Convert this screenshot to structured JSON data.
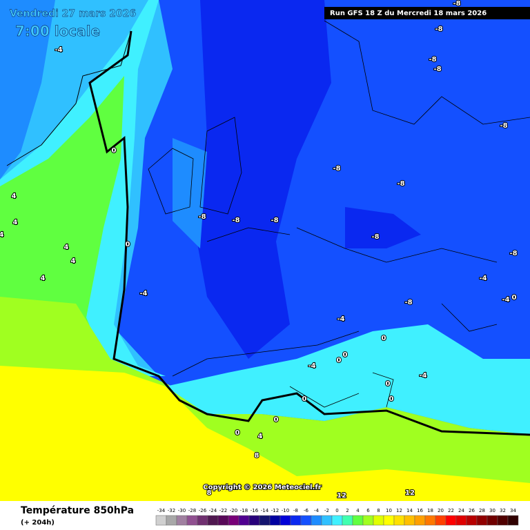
{
  "header": {
    "date": "Vendredi 27 mars 2026",
    "time": "7:00 locale",
    "run": "Run GFS 18 Z du Mercredi 18 mars 2026"
  },
  "footer": {
    "title": "Température 850hPa",
    "lead": "(+ 204h)",
    "copyright": "Copyright © 2026 Meteociel.fr"
  },
  "scale": [
    {
      "value": -34,
      "color": "#d0d0d0"
    },
    {
      "value": -32,
      "color": "#a8a8a8"
    },
    {
      "value": -30,
      "color": "#a080a0"
    },
    {
      "value": -28,
      "color": "#905090"
    },
    {
      "value": -26,
      "color": "#703070"
    },
    {
      "value": -24,
      "color": "#501850"
    },
    {
      "value": -22,
      "color": "#580858"
    },
    {
      "value": -20,
      "color": "#780078"
    },
    {
      "value": -18,
      "color": "#500090"
    },
    {
      "value": -16,
      "color": "#28007a"
    },
    {
      "value": -14,
      "color": "#14146e"
    },
    {
      "value": -12,
      "color": "#0000a0"
    },
    {
      "value": -10,
      "color": "#0000d8"
    },
    {
      "value": -8,
      "color": "#0a28f0"
    },
    {
      "value": -6,
      "color": "#1450ff"
    },
    {
      "value": -4,
      "color": "#1e8cff"
    },
    {
      "value": -2,
      "color": "#30c0ff"
    },
    {
      "value": 0,
      "color": "#40f0ff"
    },
    {
      "value": 2,
      "color": "#40ffb0"
    },
    {
      "value": 4,
      "color": "#60ff40"
    },
    {
      "value": 6,
      "color": "#a0ff20"
    },
    {
      "value": 8,
      "color": "#e0ff00"
    },
    {
      "value": 10,
      "color": "#ffff00"
    },
    {
      "value": 12,
      "color": "#ffe000"
    },
    {
      "value": 14,
      "color": "#ffc000"
    },
    {
      "value": 16,
      "color": "#ffa000"
    },
    {
      "value": 18,
      "color": "#ff7800"
    },
    {
      "value": 20,
      "color": "#ff4000"
    },
    {
      "value": 22,
      "color": "#ff0000"
    },
    {
      "value": 24,
      "color": "#e00000"
    },
    {
      "value": 26,
      "color": "#b80000"
    },
    {
      "value": 28,
      "color": "#900000"
    },
    {
      "value": 30,
      "color": "#700000"
    },
    {
      "value": 32,
      "color": "#500000"
    },
    {
      "value": 34,
      "color": "#300000"
    }
  ],
  "contour_labels": [
    "-4",
    "-8",
    "-8",
    "-8",
    "-8",
    "-8",
    "0",
    "-8",
    "-8",
    "4",
    "4",
    "4",
    "-8",
    "-8",
    "-8",
    "0",
    "4",
    "4",
    "-8",
    "-8",
    "4",
    "-4",
    "-4",
    "-8",
    "-4",
    "0",
    "-4",
    "0",
    "-4",
    "0",
    "0",
    "0",
    "-4",
    "0",
    "0",
    "0",
    "0",
    "4",
    "8",
    "8",
    "12",
    "12"
  ]
}
